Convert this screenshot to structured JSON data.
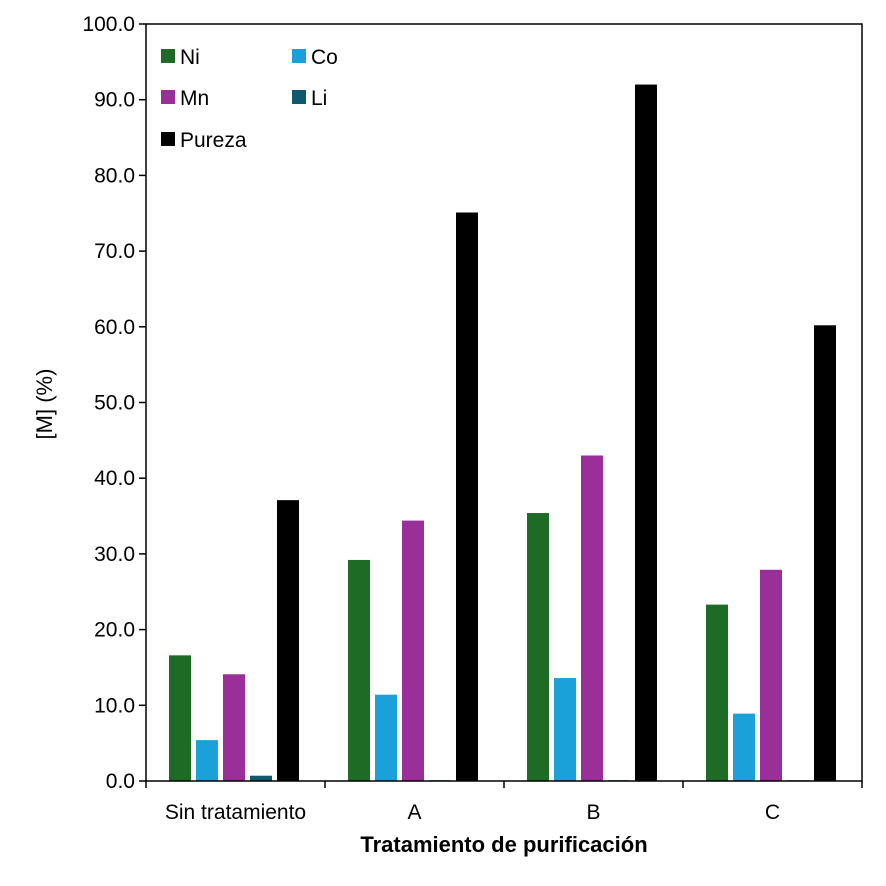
{
  "chart_data": {
    "type": "bar",
    "categories": [
      "Sin tratamiento",
      "A",
      "B",
      "C"
    ],
    "series": [
      {
        "name": "Ni",
        "color": "#1e6b26",
        "values": [
          16.6,
          29.2,
          35.4,
          23.3
        ]
      },
      {
        "name": "Co",
        "color": "#1ba1da",
        "values": [
          5.4,
          11.4,
          13.6,
          8.9
        ]
      },
      {
        "name": "Mn",
        "color": "#9b2f99",
        "values": [
          14.1,
          34.4,
          43.0,
          27.9
        ]
      },
      {
        "name": "Li",
        "color": "#0f5870",
        "values": [
          0.7,
          0.1,
          0.1,
          0.1
        ]
      },
      {
        "name": "Pureza",
        "color": "#000000",
        "values": [
          37.1,
          75.1,
          92.0,
          60.2
        ]
      }
    ],
    "title": "",
    "xlabel": "Tratamiento de purificación",
    "ylabel": "[M] (%)",
    "ylim": [
      0,
      100
    ],
    "yticks": [
      "0.0",
      "10.0",
      "20.0",
      "30.0",
      "40.0",
      "50.0",
      "60.0",
      "70.0",
      "80.0",
      "90.0",
      "100.0"
    ],
    "grid": false,
    "legend_position": "top-left"
  }
}
